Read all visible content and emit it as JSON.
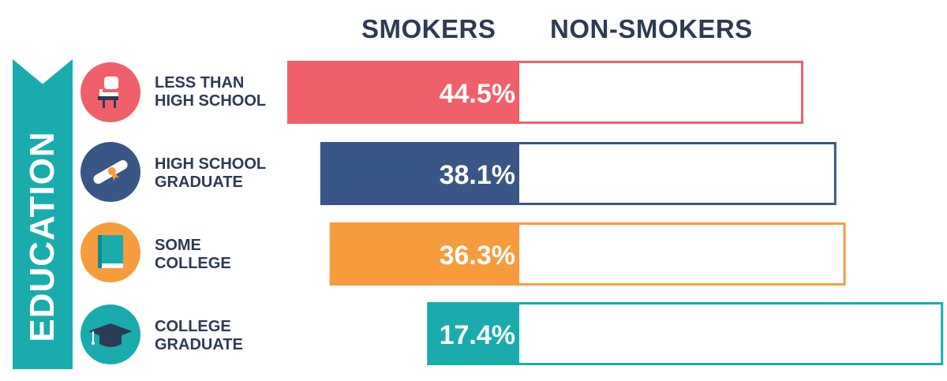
{
  "chart_data": {
    "type": "bar",
    "series": [
      {
        "name": "SMOKERS",
        "values": [
          44.5,
          38.1,
          36.3,
          17.4
        ]
      }
    ],
    "categories": [
      "LESS THAN HIGH SCHOOL",
      "HIGH SCHOOL GRADUATE",
      "SOME COLLEGE",
      "COLLEGE GRADUATE"
    ],
    "data_labels": [
      "44.5%",
      "38.1%",
      "36.3%",
      "17.4%"
    ],
    "column_headers": {
      "left": "SMOKERS",
      "right": "NON-SMOKERS"
    },
    "group_label": "EDUCATION",
    "colors": [
      "#f0606b",
      "#385786",
      "#f79c3c",
      "#1aacac"
    ]
  },
  "rows": [
    {
      "line1": "LESS THAN",
      "line2": "HIGH SCHOOL",
      "icon": "school-desk-icon",
      "color": "#f0606b"
    },
    {
      "line1": "HIGH SCHOOL",
      "line2": "GRADUATE",
      "icon": "diploma-icon",
      "color": "#385786"
    },
    {
      "line1": "SOME",
      "line2": "COLLEGE",
      "icon": "book-icon",
      "color": "#f79c3c"
    },
    {
      "line1": "COLLEGE",
      "line2": "GRADUATE",
      "icon": "graduation-cap-icon",
      "color": "#1aacac"
    }
  ]
}
